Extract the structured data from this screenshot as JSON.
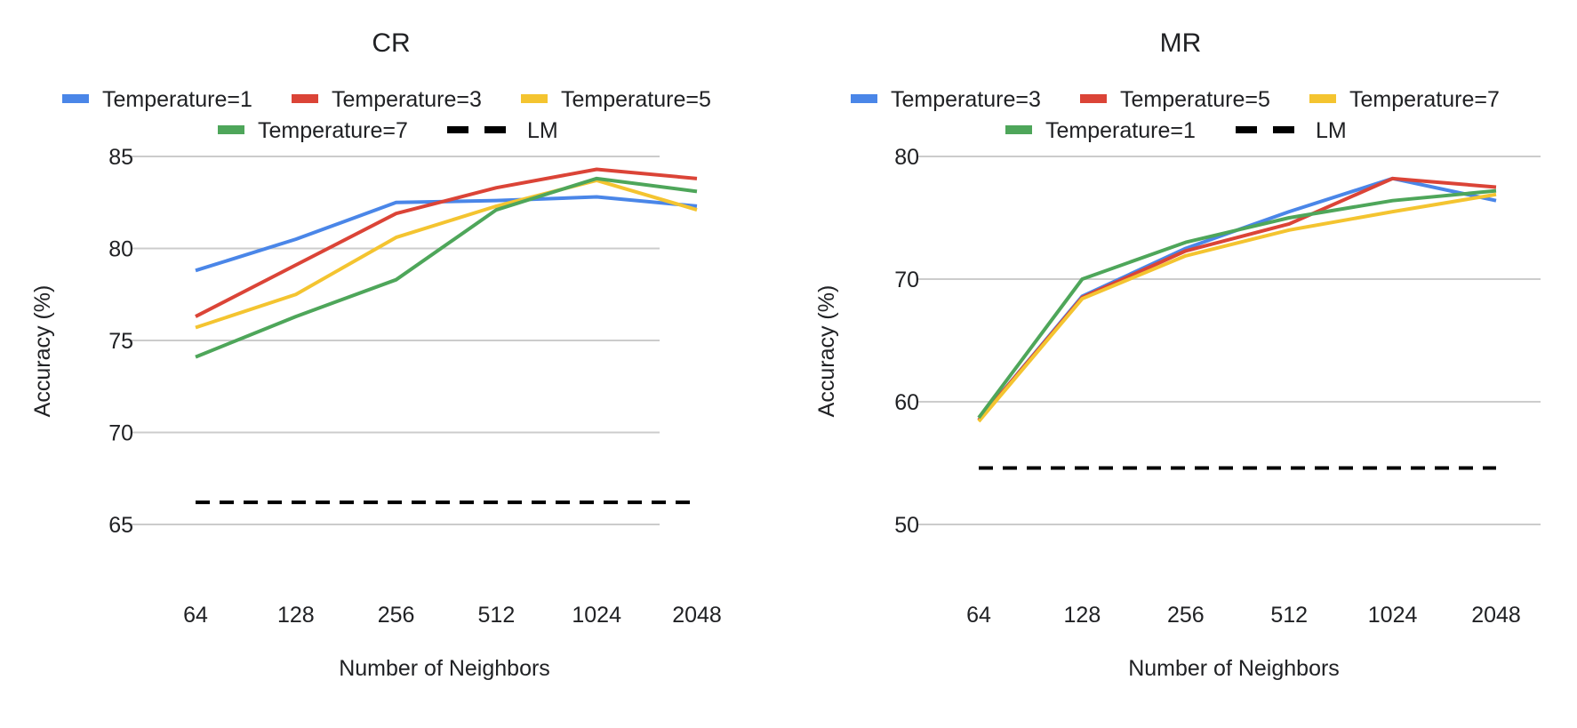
{
  "chart_data": [
    {
      "type": "line",
      "title": "CR",
      "xlabel": "Number of Neighbors",
      "ylabel": "Accuracy (%)",
      "categories": [
        "64",
        "128",
        "256",
        "512",
        "1024",
        "2048"
      ],
      "ylim": [
        65,
        85
      ],
      "yticks": [
        65,
        70,
        75,
        80,
        85
      ],
      "legend_position": "top",
      "series": [
        {
          "name": "Temperature=1",
          "color": "#4a86e8",
          "dash": "solid",
          "values": [
            78.8,
            80.5,
            82.5,
            82.6,
            82.8,
            82.3
          ]
        },
        {
          "name": "Temperature=3",
          "color": "#db4437",
          "dash": "solid",
          "values": [
            76.3,
            79.1,
            81.9,
            83.3,
            84.3,
            83.8
          ]
        },
        {
          "name": "Temperature=5",
          "color": "#f4c430",
          "dash": "solid",
          "values": [
            75.7,
            77.5,
            80.6,
            82.3,
            83.7,
            82.1
          ]
        },
        {
          "name": "Temperature=7",
          "color": "#4ea65a",
          "dash": "solid",
          "values": [
            74.1,
            76.3,
            78.3,
            82.1,
            83.8,
            83.1
          ]
        },
        {
          "name": "LM",
          "color": "#000000",
          "dash": "dashed",
          "values": [
            66.2,
            66.2,
            66.2,
            66.2,
            66.2,
            66.2
          ]
        }
      ]
    },
    {
      "type": "line",
      "title": "MR",
      "xlabel": "Number of Neighbors",
      "ylabel": "Accuracy (%)",
      "categories": [
        "64",
        "128",
        "256",
        "512",
        "1024",
        "2048"
      ],
      "ylim": [
        50,
        80
      ],
      "yticks": [
        50,
        60,
        70,
        80
      ],
      "legend_position": "top",
      "series": [
        {
          "name": "Temperature=3",
          "color": "#4a86e8",
          "dash": "solid",
          "values": [
            58.5,
            68.6,
            72.5,
            75.5,
            78.2,
            76.4
          ]
        },
        {
          "name": "Temperature=5",
          "color": "#db4437",
          "dash": "solid",
          "values": [
            58.5,
            68.5,
            72.3,
            74.5,
            78.2,
            77.5
          ]
        },
        {
          "name": "Temperature=7",
          "color": "#f4c430",
          "dash": "solid",
          "values": [
            58.4,
            68.4,
            71.9,
            74.0,
            75.5,
            76.9
          ]
        },
        {
          "name": "Temperature=1",
          "color": "#4ea65a",
          "dash": "solid",
          "values": [
            58.7,
            70.0,
            73.0,
            75.0,
            76.4,
            77.2
          ]
        },
        {
          "name": "LM",
          "color": "#000000",
          "dash": "dashed",
          "values": [
            54.6,
            54.6,
            54.6,
            54.6,
            54.6,
            54.6
          ]
        }
      ]
    }
  ]
}
